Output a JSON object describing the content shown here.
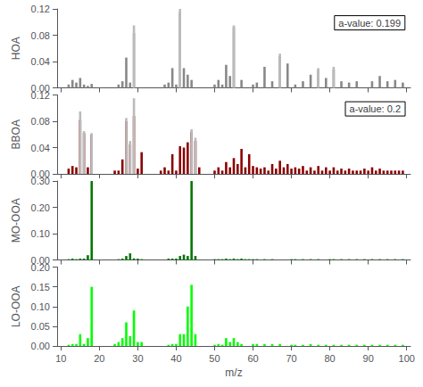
{
  "chart_data": [
    {
      "type": "bar",
      "ylabel": "HOA",
      "annotation": "a-value: 0.199",
      "xlim": [
        9,
        101
      ],
      "xticks": [
        10,
        20,
        30,
        40,
        50,
        60,
        70,
        80,
        90,
        100
      ],
      "ylim": [
        0,
        0.12
      ],
      "yticks": [
        {
          "value": 0,
          "label": "0.00"
        },
        0.04,
        0.08,
        0.12
      ],
      "tick_labels": "y",
      "grid": false,
      "series": [
        {
          "color": "#888888",
          "x": [
            12,
            13,
            14,
            15,
            16,
            17,
            18,
            25,
            26,
            27,
            28,
            29,
            37,
            38,
            39,
            40,
            41,
            42,
            43,
            44,
            50,
            51,
            52,
            53,
            54,
            55,
            57,
            60,
            61,
            63,
            65,
            67,
            69,
            71,
            73,
            75,
            77,
            79,
            81,
            83,
            85,
            87,
            91,
            93,
            95,
            97,
            99
          ],
          "values": [
            0.005,
            0.012,
            0.008,
            0.015,
            0.005,
            0.003,
            0.006,
            0.005,
            0.01,
            0.046,
            0.008,
            0.083,
            0.005,
            0.008,
            0.03,
            0.005,
            0.115,
            0.03,
            0.02,
            0.012,
            0.005,
            0.012,
            0.005,
            0.035,
            0.018,
            0.092,
            0.012,
            0.005,
            0.008,
            0.032,
            0.01,
            0.048,
            0.037,
            0.005,
            0.01,
            0.02,
            0.028,
            0.015,
            0.028,
            0.01,
            0.008,
            0.01,
            0.01,
            0.018,
            0.01,
            0.012,
            0.008
          ]
        },
        {
          "color": "#bbbbbb",
          "x": [
            29,
            41,
            55,
            67,
            77,
            81
          ],
          "values": [
            0.095,
            0.12,
            0.095,
            0.052,
            0.03,
            0.032
          ]
        }
      ]
    },
    {
      "type": "bar",
      "ylabel": "BBOA",
      "annotation": "a-value: 0.2",
      "xlim": [
        9,
        101
      ],
      "xticks": [
        10,
        20,
        30,
        40,
        50,
        60,
        70,
        80,
        90,
        100
      ],
      "ylim": [
        0,
        0.12
      ],
      "yticks": [
        {
          "value": 0,
          "label": "0.00"
        },
        0.04,
        0.08,
        0.12
      ],
      "tick_labels": "y",
      "grid": false,
      "series": [
        {
          "color": "#8b0000",
          "x": [
            12,
            13,
            14,
            15,
            16,
            17,
            18,
            24,
            25,
            26,
            27,
            28,
            29,
            30,
            31,
            36,
            37,
            38,
            39,
            40,
            41,
            42,
            43,
            44,
            45,
            46,
            50,
            51,
            52,
            53,
            54,
            55,
            56,
            57,
            58,
            59,
            60,
            61,
            62,
            63,
            64,
            65,
            66,
            67,
            68,
            69,
            70,
            71,
            72,
            73,
            74,
            75,
            76,
            77,
            78,
            79,
            80,
            81,
            82,
            83,
            84,
            85,
            86,
            87,
            88,
            89,
            90,
            91,
            92,
            93,
            94,
            95,
            96,
            97,
            98,
            99
          ],
          "values": [
            0.008,
            0.012,
            0.01,
            0.082,
            0.062,
            0.01,
            0.06,
            0.005,
            0.005,
            0.022,
            0.08,
            0.045,
            0.088,
            0.008,
            0.033,
            0.005,
            0.01,
            0.005,
            0.03,
            0.005,
            0.042,
            0.04,
            0.048,
            0.064,
            0.05,
            0.01,
            0.005,
            0.01,
            0.005,
            0.018,
            0.01,
            0.024,
            0.015,
            0.038,
            0.01,
            0.03,
            0.012,
            0.01,
            0.008,
            0.01,
            0.005,
            0.015,
            0.008,
            0.02,
            0.01,
            0.015,
            0.008,
            0.01,
            0.008,
            0.012,
            0.005,
            0.01,
            0.005,
            0.012,
            0.005,
            0.01,
            0.005,
            0.01,
            0.005,
            0.008,
            0.005,
            0.008,
            0.005,
            0.005,
            0.005,
            0.008,
            0.005,
            0.01,
            0.005,
            0.008,
            0.005,
            0.005,
            0.005,
            0.005,
            0.005,
            0.005
          ]
        },
        {
          "color": "#bbbbbb",
          "x": [
            15,
            16,
            18,
            27,
            28,
            29,
            44,
            45
          ],
          "values": [
            0.095,
            0.065,
            0.062,
            0.085,
            0.05,
            0.115,
            0.068,
            0.055
          ]
        }
      ]
    },
    {
      "type": "bar",
      "ylabel": "MO-OOA",
      "xlim": [
        9,
        101
      ],
      "xticks": [
        10,
        20,
        30,
        40,
        50,
        60,
        70,
        80,
        90,
        100
      ],
      "ylim": [
        0,
        0.3
      ],
      "yticks": [
        {
          "value": 0,
          "label": "0.00"
        },
        {
          "value": 0.1,
          "label": "0.10"
        },
        {
          "value": 0.2,
          "label": "0.20"
        },
        {
          "value": 0.3,
          "label": "0.30"
        }
      ],
      "tick_labels": "y",
      "grid": false,
      "series": [
        {
          "color": "#007700",
          "x": [
            12,
            13,
            14,
            15,
            16,
            17,
            18,
            25,
            26,
            27,
            28,
            29,
            30,
            31,
            38,
            39,
            40,
            41,
            42,
            43,
            44,
            45,
            50,
            51,
            52,
            53,
            54,
            55,
            56,
            57,
            58,
            59,
            60,
            61,
            63,
            65,
            70,
            71,
            73,
            75,
            77,
            80,
            81,
            83,
            85,
            87,
            89,
            91,
            93,
            95,
            97,
            99
          ],
          "values": [
            0.003,
            0.005,
            0.003,
            0.005,
            0.005,
            0.018,
            0.3,
            0.003,
            0.005,
            0.015,
            0.025,
            0.006,
            0.005,
            0.003,
            0.005,
            0.005,
            0.005,
            0.015,
            0.02,
            0.015,
            0.3,
            0.015,
            0.003,
            0.003,
            0.003,
            0.005,
            0.003,
            0.005,
            0.003,
            0.005,
            0.003,
            0.003,
            0.003,
            0.003,
            0.003,
            0.003,
            0.003,
            0.003,
            0.003,
            0.003,
            0.003,
            0.003,
            0.003,
            0.003,
            0.003,
            0.003,
            0.003,
            0.003,
            0.003,
            0.003,
            0.003,
            0.003
          ]
        }
      ]
    },
    {
      "type": "bar",
      "ylabel": "LO-OOA",
      "xlabel": "m/z",
      "xlim": [
        9,
        101
      ],
      "xticks": [
        10,
        20,
        30,
        40,
        50,
        60,
        70,
        80,
        90,
        100
      ],
      "ylim": [
        0,
        0.2
      ],
      "yticks": [
        {
          "value": 0,
          "label": "0.00"
        },
        0.05,
        {
          "value": 0.1,
          "label": "0.10"
        },
        0.15,
        {
          "value": 0.2,
          "label": "0.20"
        }
      ],
      "grid": false,
      "series": [
        {
          "color": "#00ff00",
          "x": [
            12,
            13,
            14,
            15,
            16,
            17,
            18,
            24,
            25,
            26,
            27,
            28,
            29,
            30,
            31,
            38,
            39,
            40,
            41,
            42,
            43,
            44,
            45,
            50,
            51,
            52,
            53,
            54,
            55,
            56,
            57,
            60,
            61,
            63,
            65,
            67,
            70,
            71,
            73,
            75,
            77,
            79,
            81,
            83,
            85,
            87,
            89,
            91,
            93,
            95,
            97,
            99
          ],
          "values": [
            0.003,
            0.005,
            0.005,
            0.03,
            0.005,
            0.02,
            0.15,
            0.005,
            0.01,
            0.02,
            0.06,
            0.025,
            0.09,
            0.01,
            0.01,
            0.003,
            0.005,
            0.005,
            0.03,
            0.03,
            0.1,
            0.155,
            0.03,
            0.003,
            0.005,
            0.003,
            0.02,
            0.01,
            0.02,
            0.01,
            0.005,
            0.005,
            0.005,
            0.005,
            0.005,
            0.005,
            0.003,
            0.003,
            0.003,
            0.005,
            0.003,
            0.003,
            0.003,
            0.003,
            0.003,
            0.003,
            0.003,
            0.003,
            0.003,
            0.003,
            0.003,
            0.003
          ]
        }
      ]
    }
  ]
}
